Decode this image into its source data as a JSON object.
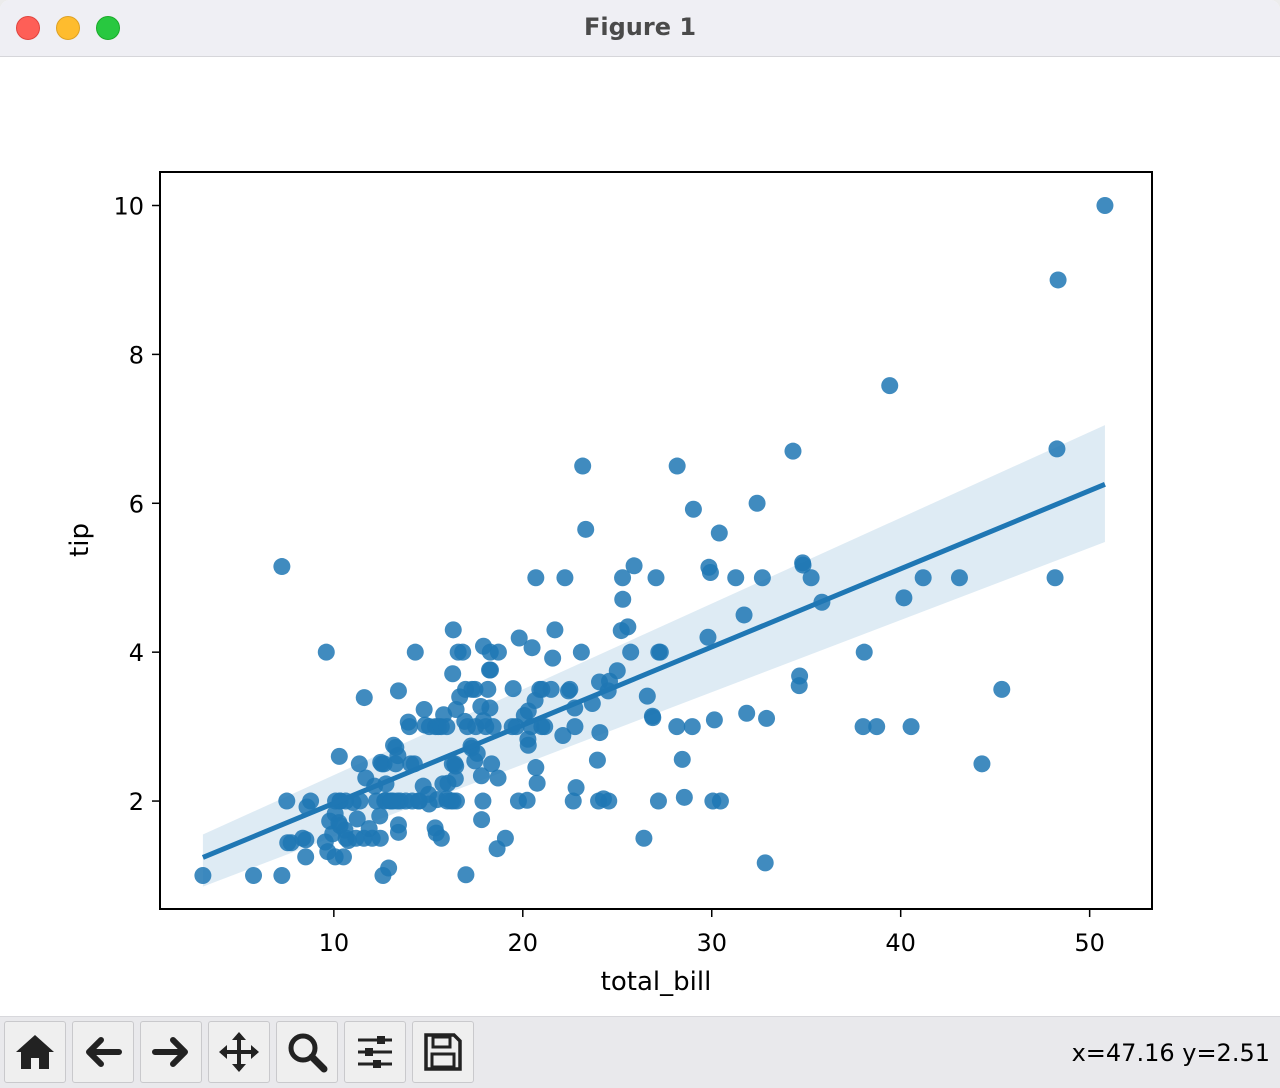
{
  "window": {
    "title": "Figure 1"
  },
  "toolbar": {
    "buttons": [
      {
        "name": "home-button",
        "icon": "home-icon"
      },
      {
        "name": "back-button",
        "icon": "arrow-left-icon"
      },
      {
        "name": "forward-button",
        "icon": "arrow-right-icon"
      },
      {
        "name": "pan-button",
        "icon": "move-icon"
      },
      {
        "name": "zoom-button",
        "icon": "magnifier-icon"
      },
      {
        "name": "configure-subplots-button",
        "icon": "sliders-icon"
      },
      {
        "name": "save-button",
        "icon": "floppy-disk-icon"
      }
    ],
    "coords": "x=47.16 y=2.51"
  },
  "chart_data": {
    "type": "scatter",
    "title": "",
    "xlabel": "total_bill",
    "ylabel": "tip",
    "xlim": [
      0.8,
      53.3
    ],
    "ylim": [
      0.55,
      10.45
    ],
    "xticks": [
      10,
      20,
      30,
      40,
      50
    ],
    "yticks": [
      2,
      4,
      6,
      8,
      10
    ],
    "grid": false,
    "point_color": "#1f77b4",
    "regression": {
      "x_range": [
        3.07,
        50.81
      ],
      "intercept": 0.92,
      "slope": 0.105,
      "ci_band": {
        "x": [
          3.07,
          50.81
        ],
        "lower": [
          0.85,
          5.48
        ],
        "upper": [
          1.55,
          7.05
        ]
      }
    },
    "points": [
      [
        3.07,
        1.0
      ],
      [
        5.75,
        1.0
      ],
      [
        7.25,
        1.0
      ],
      [
        7.25,
        5.15
      ],
      [
        7.51,
        2.0
      ],
      [
        7.56,
        1.44
      ],
      [
        7.74,
        1.44
      ],
      [
        8.35,
        1.5
      ],
      [
        8.51,
        1.25
      ],
      [
        8.52,
        1.48
      ],
      [
        8.58,
        1.92
      ],
      [
        8.77,
        2.0
      ],
      [
        9.55,
        1.45
      ],
      [
        9.6,
        4.0
      ],
      [
        9.68,
        1.32
      ],
      [
        9.78,
        1.73
      ],
      [
        9.94,
        1.56
      ],
      [
        10.07,
        1.25
      ],
      [
        10.07,
        1.83
      ],
      [
        10.09,
        2.0
      ],
      [
        10.27,
        1.71
      ],
      [
        10.29,
        2.6
      ],
      [
        10.33,
        1.67
      ],
      [
        10.33,
        2.0
      ],
      [
        10.34,
        2.0
      ],
      [
        10.51,
        1.25
      ],
      [
        10.59,
        1.61
      ],
      [
        10.63,
        2.0
      ],
      [
        10.65,
        1.5
      ],
      [
        10.77,
        1.47
      ],
      [
        11.02,
        1.98
      ],
      [
        11.17,
        1.5
      ],
      [
        11.24,
        1.76
      ],
      [
        11.35,
        2.5
      ],
      [
        11.38,
        2.0
      ],
      [
        11.59,
        1.5
      ],
      [
        11.61,
        3.39
      ],
      [
        11.69,
        2.31
      ],
      [
        11.87,
        1.63
      ],
      [
        12.03,
        1.5
      ],
      [
        12.16,
        2.2
      ],
      [
        12.26,
        2.0
      ],
      [
        12.43,
        1.8
      ],
      [
        12.46,
        1.5
      ],
      [
        12.48,
        2.52
      ],
      [
        12.54,
        2.5
      ],
      [
        12.6,
        1.0
      ],
      [
        12.66,
        2.5
      ],
      [
        12.69,
        2.0
      ],
      [
        12.74,
        2.01
      ],
      [
        12.76,
        2.23
      ],
      [
        12.9,
        1.1
      ],
      [
        13.0,
        2.0
      ],
      [
        13.03,
        2.0
      ],
      [
        13.13,
        2.0
      ],
      [
        13.16,
        2.75
      ],
      [
        13.27,
        2.5
      ],
      [
        13.28,
        2.72
      ],
      [
        13.37,
        2.0
      ],
      [
        13.39,
        2.61
      ],
      [
        13.42,
        1.58
      ],
      [
        13.42,
        1.68
      ],
      [
        13.42,
        3.48
      ],
      [
        13.51,
        2.0
      ],
      [
        13.81,
        2.0
      ],
      [
        13.94,
        3.06
      ],
      [
        14.0,
        3.0
      ],
      [
        14.07,
        2.5
      ],
      [
        14.15,
        2.0
      ],
      [
        14.26,
        2.5
      ],
      [
        14.31,
        4.0
      ],
      [
        14.48,
        2.0
      ],
      [
        14.52,
        2.0
      ],
      [
        14.73,
        2.2
      ],
      [
        14.78,
        3.23
      ],
      [
        14.83,
        3.02
      ],
      [
        15.01,
        2.09
      ],
      [
        15.04,
        1.96
      ],
      [
        15.06,
        3.0
      ],
      [
        15.36,
        1.64
      ],
      [
        15.38,
        3.0
      ],
      [
        15.42,
        1.57
      ],
      [
        15.48,
        2.02
      ],
      [
        15.53,
        3.0
      ],
      [
        15.69,
        1.5
      ],
      [
        15.69,
        3.0
      ],
      [
        15.77,
        2.23
      ],
      [
        15.81,
        3.16
      ],
      [
        15.98,
        2.03
      ],
      [
        15.98,
        3.0
      ],
      [
        16.0,
        2.0
      ],
      [
        16.04,
        2.24
      ],
      [
        16.21,
        2.0
      ],
      [
        16.27,
        2.5
      ],
      [
        16.29,
        3.71
      ],
      [
        16.31,
        2.0
      ],
      [
        16.32,
        4.3
      ],
      [
        16.4,
        2.5
      ],
      [
        16.43,
        2.3
      ],
      [
        16.45,
        2.47
      ],
      [
        16.47,
        3.23
      ],
      [
        16.49,
        2.0
      ],
      [
        16.58,
        4.0
      ],
      [
        16.66,
        3.4
      ],
      [
        16.82,
        4.0
      ],
      [
        16.93,
        3.07
      ],
      [
        16.97,
        3.5
      ],
      [
        16.99,
        1.01
      ],
      [
        17.07,
        3.0
      ],
      [
        17.26,
        2.74
      ],
      [
        17.29,
        2.71
      ],
      [
        17.31,
        3.5
      ],
      [
        17.46,
        2.54
      ],
      [
        17.47,
        3.5
      ],
      [
        17.51,
        3.0
      ],
      [
        17.59,
        2.64
      ],
      [
        17.78,
        3.27
      ],
      [
        17.81,
        2.34
      ],
      [
        17.82,
        1.75
      ],
      [
        17.89,
        2.0
      ],
      [
        17.92,
        3.08
      ],
      [
        17.92,
        4.08
      ],
      [
        18.04,
        3.0
      ],
      [
        18.15,
        3.5
      ],
      [
        18.24,
        3.76
      ],
      [
        18.26,
        3.25
      ],
      [
        18.28,
        4.0
      ],
      [
        18.29,
        3.76
      ],
      [
        18.35,
        2.5
      ],
      [
        18.43,
        3.0
      ],
      [
        18.64,
        1.36
      ],
      [
        18.69,
        2.31
      ],
      [
        18.71,
        4.0
      ],
      [
        19.08,
        1.5
      ],
      [
        19.44,
        3.0
      ],
      [
        19.49,
        3.51
      ],
      [
        19.65,
        3.0
      ],
      [
        19.77,
        2.0
      ],
      [
        19.81,
        4.19
      ],
      [
        20.08,
        3.15
      ],
      [
        20.23,
        2.01
      ],
      [
        20.27,
        2.83
      ],
      [
        20.29,
        2.75
      ],
      [
        20.29,
        3.21
      ],
      [
        20.45,
        3.0
      ],
      [
        20.49,
        4.06
      ],
      [
        20.65,
        3.35
      ],
      [
        20.69,
        2.45
      ],
      [
        20.69,
        5.0
      ],
      [
        20.76,
        2.24
      ],
      [
        20.9,
        3.5
      ],
      [
        21.01,
        3.5
      ],
      [
        21.01,
        3.0
      ],
      [
        21.16,
        3.0
      ],
      [
        21.5,
        3.5
      ],
      [
        21.58,
        3.92
      ],
      [
        21.7,
        4.3
      ],
      [
        22.12,
        2.88
      ],
      [
        22.23,
        5.0
      ],
      [
        22.42,
        3.48
      ],
      [
        22.49,
        3.5
      ],
      [
        22.67,
        2.0
      ],
      [
        22.75,
        3.25
      ],
      [
        22.76,
        3.0
      ],
      [
        22.82,
        2.18
      ],
      [
        23.1,
        4.0
      ],
      [
        23.17,
        6.5
      ],
      [
        23.33,
        5.65
      ],
      [
        23.68,
        3.31
      ],
      [
        23.95,
        2.55
      ],
      [
        24.01,
        2.0
      ],
      [
        24.06,
        3.6
      ],
      [
        24.08,
        2.92
      ],
      [
        24.27,
        2.03
      ],
      [
        24.52,
        3.48
      ],
      [
        24.55,
        2.0
      ],
      [
        24.59,
        3.61
      ],
      [
        25.0,
        3.75
      ],
      [
        25.21,
        4.29
      ],
      [
        25.28,
        5.0
      ],
      [
        25.29,
        4.71
      ],
      [
        25.56,
        4.34
      ],
      [
        25.71,
        4.0
      ],
      [
        25.89,
        5.16
      ],
      [
        26.41,
        1.5
      ],
      [
        26.59,
        3.41
      ],
      [
        26.86,
        3.14
      ],
      [
        26.88,
        3.12
      ],
      [
        27.05,
        5.0
      ],
      [
        27.18,
        2.0
      ],
      [
        27.2,
        4.0
      ],
      [
        27.28,
        4.0
      ],
      [
        28.15,
        3.0
      ],
      [
        28.17,
        6.5
      ],
      [
        28.44,
        2.56
      ],
      [
        28.55,
        2.05
      ],
      [
        28.97,
        3.0
      ],
      [
        29.03,
        5.92
      ],
      [
        29.8,
        4.2
      ],
      [
        29.85,
        5.14
      ],
      [
        29.93,
        5.07
      ],
      [
        30.06,
        2.0
      ],
      [
        30.14,
        3.09
      ],
      [
        30.4,
        5.6
      ],
      [
        30.46,
        2.0
      ],
      [
        31.27,
        5.0
      ],
      [
        31.71,
        4.5
      ],
      [
        31.85,
        3.18
      ],
      [
        32.4,
        6.0
      ],
      [
        32.68,
        5.0
      ],
      [
        32.83,
        1.17
      ],
      [
        32.9,
        3.11
      ],
      [
        34.3,
        6.7
      ],
      [
        34.63,
        3.55
      ],
      [
        34.65,
        3.68
      ],
      [
        34.81,
        5.2
      ],
      [
        34.83,
        5.17
      ],
      [
        35.26,
        5.0
      ],
      [
        35.83,
        4.67
      ],
      [
        38.01,
        3.0
      ],
      [
        38.07,
        4.0
      ],
      [
        38.73,
        3.0
      ],
      [
        39.42,
        7.58
      ],
      [
        40.17,
        4.73
      ],
      [
        40.55,
        3.0
      ],
      [
        41.19,
        5.0
      ],
      [
        43.11,
        5.0
      ],
      [
        44.3,
        2.5
      ],
      [
        45.35,
        3.5
      ],
      [
        48.17,
        5.0
      ],
      [
        48.27,
        6.73
      ],
      [
        48.33,
        9.0
      ],
      [
        50.81,
        10.0
      ]
    ]
  }
}
